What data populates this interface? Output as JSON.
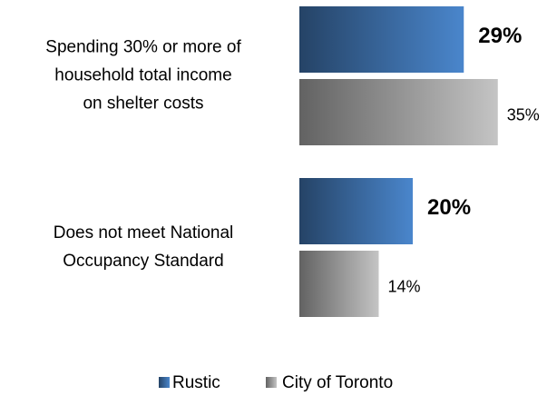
{
  "chart_data": {
    "type": "hbar",
    "categories": [
      [
        "Spending 30% or more of",
        "household total income",
        "on shelter costs"
      ],
      [
        "Does not meet National",
        "Occupancy Standard"
      ]
    ],
    "series": [
      {
        "name": "Rustic",
        "color": "#4a86cc",
        "values": [
          29,
          20
        ],
        "value_labels": [
          "29%",
          "20%"
        ]
      },
      {
        "name": "City of Toronto",
        "color": "#c4c4c4",
        "values": [
          35,
          14
        ],
        "value_labels": [
          "35%",
          "14%"
        ]
      }
    ],
    "legend": "bottom"
  }
}
